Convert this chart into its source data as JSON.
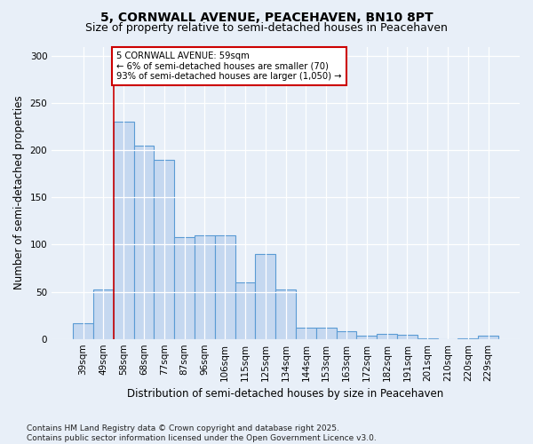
{
  "title": "5, CORNWALL AVENUE, PEACEHAVEN, BN10 8PT",
  "subtitle": "Size of property relative to semi-detached houses in Peacehaven",
  "xlabel": "Distribution of semi-detached houses by size in Peacehaven",
  "ylabel": "Number of semi-detached properties",
  "categories": [
    "39sqm",
    "49sqm",
    "58sqm",
    "68sqm",
    "77sqm",
    "87sqm",
    "96sqm",
    "106sqm",
    "115sqm",
    "125sqm",
    "134sqm",
    "144sqm",
    "153sqm",
    "163sqm",
    "172sqm",
    "182sqm",
    "191sqm",
    "201sqm",
    "210sqm",
    "220sqm",
    "229sqm"
  ],
  "values": [
    17,
    52,
    230,
    205,
    190,
    108,
    110,
    110,
    60,
    90,
    52,
    12,
    12,
    8,
    3,
    5,
    4,
    1,
    0,
    1,
    3
  ],
  "bar_color": "#C5D8F0",
  "bar_edge_color": "#5A9BD4",
  "background_color": "#E8EFF8",
  "vline_x_index": 2,
  "vline_color": "#CC0000",
  "annotation_text": "5 CORNWALL AVENUE: 59sqm\n← 6% of semi-detached houses are smaller (70)\n93% of semi-detached houses are larger (1,050) →",
  "annotation_box_color": "#FFFFFF",
  "annotation_box_edge": "#CC0000",
  "ylim": [
    0,
    310
  ],
  "yticks": [
    0,
    50,
    100,
    150,
    200,
    250,
    300
  ],
  "footer": "Contains HM Land Registry data © Crown copyright and database right 2025.\nContains public sector information licensed under the Open Government Licence v3.0.",
  "title_fontsize": 10,
  "subtitle_fontsize": 9,
  "axis_label_fontsize": 8.5,
  "tick_fontsize": 7.5,
  "footer_fontsize": 6.5
}
